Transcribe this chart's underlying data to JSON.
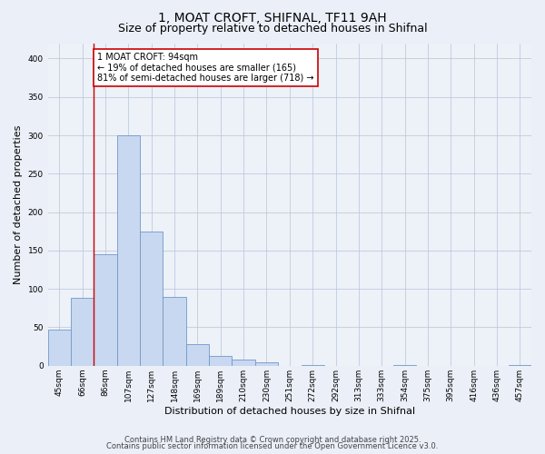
{
  "title1": "1, MOAT CROFT, SHIFNAL, TF11 9AH",
  "title2": "Size of property relative to detached houses in Shifnal",
  "xlabel": "Distribution of detached houses by size in Shifnal",
  "ylabel": "Number of detached properties",
  "categories": [
    "45sqm",
    "66sqm",
    "86sqm",
    "107sqm",
    "127sqm",
    "148sqm",
    "169sqm",
    "189sqm",
    "210sqm",
    "230sqm",
    "251sqm",
    "272sqm",
    "292sqm",
    "313sqm",
    "333sqm",
    "354sqm",
    "375sqm",
    "395sqm",
    "416sqm",
    "436sqm",
    "457sqm"
  ],
  "values": [
    47,
    88,
    145,
    300,
    175,
    90,
    28,
    13,
    8,
    5,
    0,
    1,
    0,
    0,
    0,
    1,
    0,
    0,
    0,
    0,
    1
  ],
  "bar_color": "#c8d8f0",
  "bar_edge_color": "#7098c8",
  "vertical_line_x": 1.5,
  "vertical_line_color": "#cc0000",
  "annotation_text": "1 MOAT CROFT: 94sqm\n← 19% of detached houses are smaller (165)\n81% of semi-detached houses are larger (718) →",
  "annotation_box_facecolor": "#ffffff",
  "annotation_box_edgecolor": "#cc0000",
  "ylim": [
    0,
    420
  ],
  "yticks": [
    0,
    50,
    100,
    150,
    200,
    250,
    300,
    350,
    400
  ],
  "footer1": "Contains HM Land Registry data © Crown copyright and database right 2025.",
  "footer2": "Contains public sector information licensed under the Open Government Licence v3.0.",
  "bg_color": "#eaeff8",
  "plot_bg_color": "#edf1f8",
  "title_fontsize": 10,
  "subtitle_fontsize": 9,
  "ylabel_fontsize": 8,
  "xlabel_fontsize": 8,
  "tick_fontsize": 6.5,
  "annotation_fontsize": 7,
  "footer_fontsize": 6
}
